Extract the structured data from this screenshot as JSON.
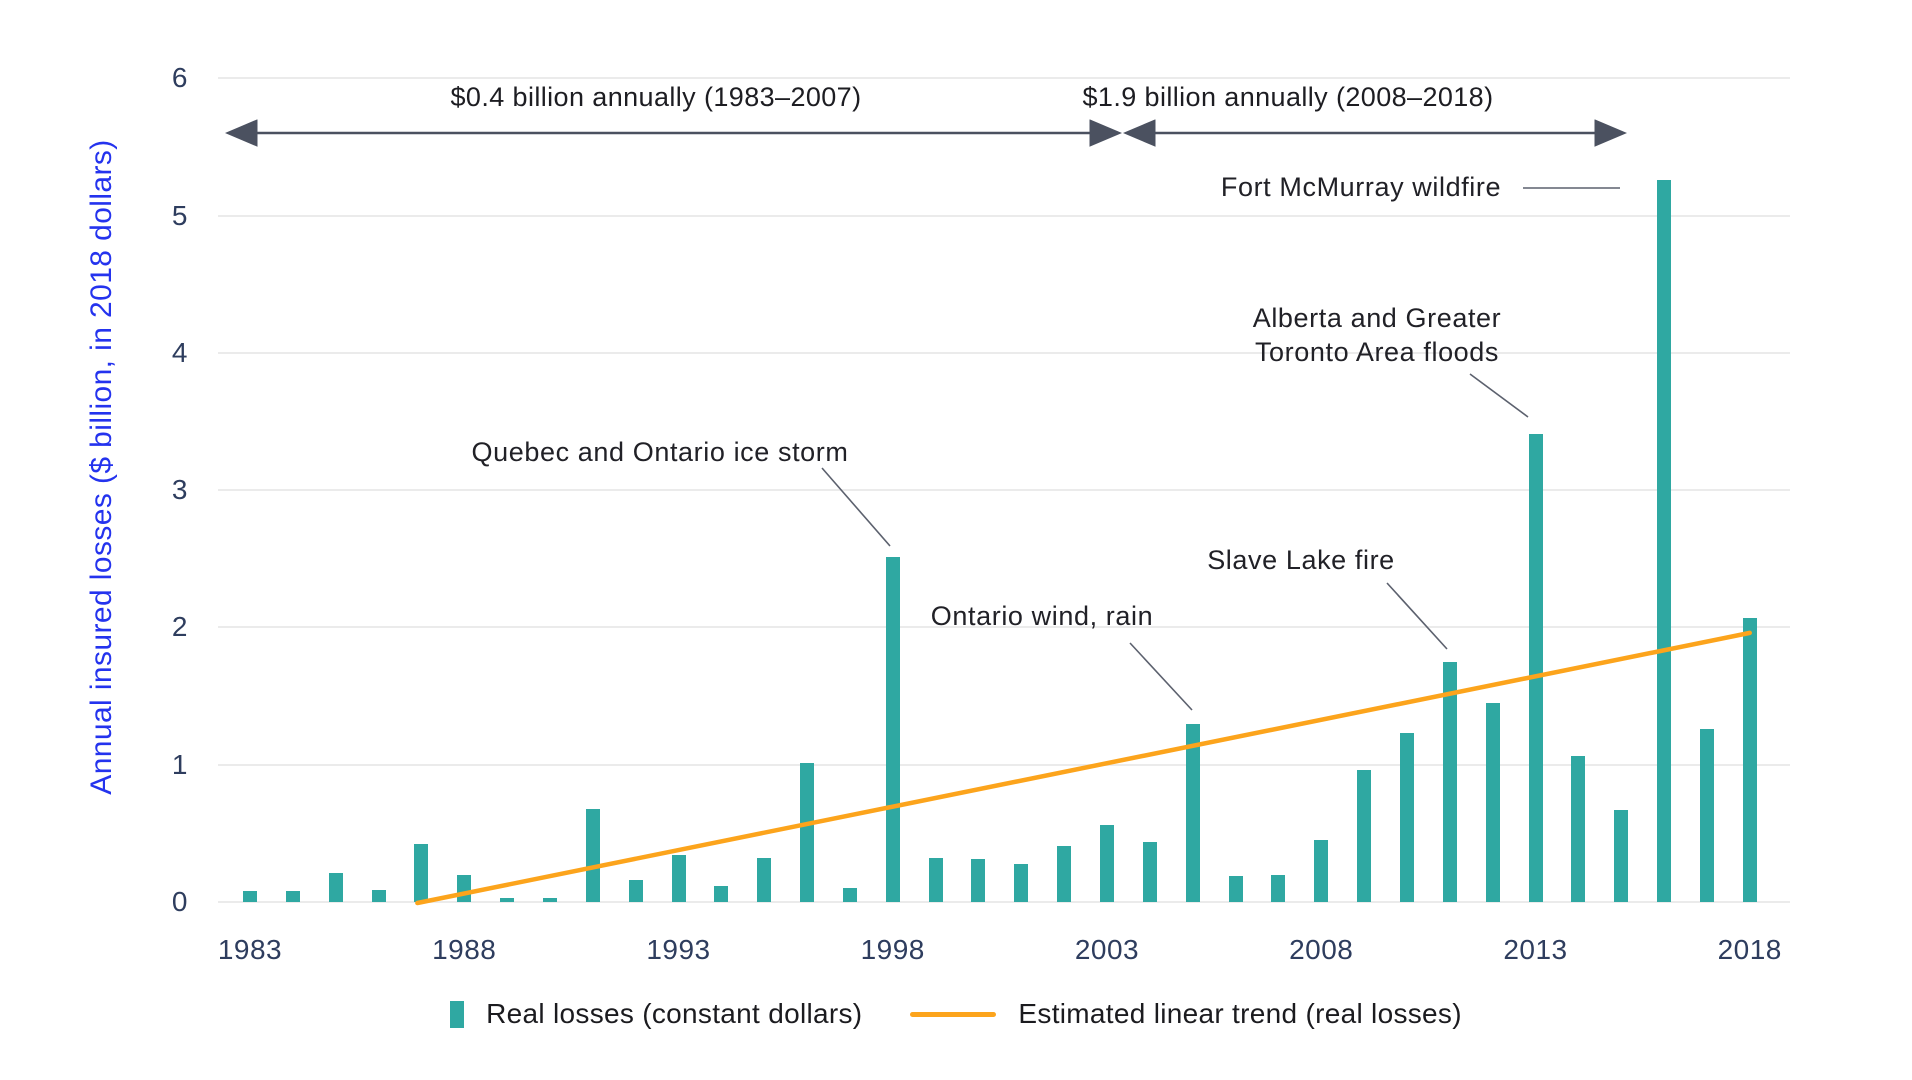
{
  "y_axis": {
    "title": "Annual insured losses ($ billion, in 2018 dollars)",
    "tick_values": [
      0,
      1,
      2,
      3,
      4,
      5,
      6
    ]
  },
  "x_axis": {
    "tick_years": [
      1983,
      1988,
      1993,
      1998,
      2003,
      2008,
      2013,
      2018
    ]
  },
  "annotations": {
    "period1": {
      "label": "$0.4 billion annually (1983–2007)",
      "from_year": 1983,
      "to_year": 2007
    },
    "period2": {
      "label": "$1.9 billion annually (2008–2018)",
      "from_year": 2008,
      "to_year": 2018
    },
    "ice_storm": {
      "label": "Quebec and Ontario ice storm",
      "year": 1998
    },
    "wind_rain": {
      "label": "Ontario wind, rain",
      "year": 2005
    },
    "slave_lake": {
      "label": "Slave Lake fire",
      "year": 2011
    },
    "ab_floods_line1": "Alberta and Greater",
    "ab_floods_line2": "Toronto Area floods",
    "ab_floods_year": 2013,
    "fort_mcmurray": {
      "label": "Fort McMurray wildfire",
      "year": 2016
    }
  },
  "legend": {
    "bars_label": "Real losses (constant dollars)",
    "trend_label": "Estimated linear trend (real losses)"
  },
  "colors": {
    "bar_teal": "#2FA8A2",
    "trend_orange": "#FCA41C",
    "axis_title_blue": "#2433EE",
    "tick_navy": "#2E3D5E",
    "annotation_ink": "#212127",
    "arrow_gray": "#4B5160",
    "leader_gray": "#5C616E",
    "gridline_gray": "#EBEBEB"
  },
  "chart_data": {
    "type": "bar",
    "title": "",
    "xlabel": "",
    "ylabel": "Annual insured losses ($ billion, in 2018 dollars)",
    "ylim": [
      0,
      6
    ],
    "grid": true,
    "legend_position": "bottom",
    "categories": [
      1983,
      1984,
      1985,
      1986,
      1987,
      1988,
      1989,
      1990,
      1991,
      1992,
      1993,
      1994,
      1995,
      1996,
      1997,
      1998,
      1999,
      2000,
      2001,
      2002,
      2003,
      2004,
      2005,
      2006,
      2007,
      2008,
      2009,
      2010,
      2011,
      2012,
      2013,
      2014,
      2015,
      2016,
      2017,
      2018
    ],
    "values": [
      0.08,
      0.08,
      0.21,
      0.09,
      0.42,
      0.2,
      0.03,
      0.03,
      0.68,
      0.16,
      0.34,
      0.12,
      0.32,
      1.01,
      0.1,
      2.51,
      0.32,
      0.31,
      0.28,
      0.41,
      0.56,
      0.44,
      1.3,
      0.19,
      0.2,
      0.45,
      0.96,
      1.23,
      1.75,
      1.45,
      3.41,
      1.06,
      0.67,
      5.26,
      1.26,
      2.07
    ],
    "series_name": "Real losses (constant dollars)",
    "trend_line": {
      "name": "Estimated linear trend (real losses)",
      "x": [
        1987,
        2018
      ],
      "y": [
        0,
        1.96
      ]
    }
  }
}
